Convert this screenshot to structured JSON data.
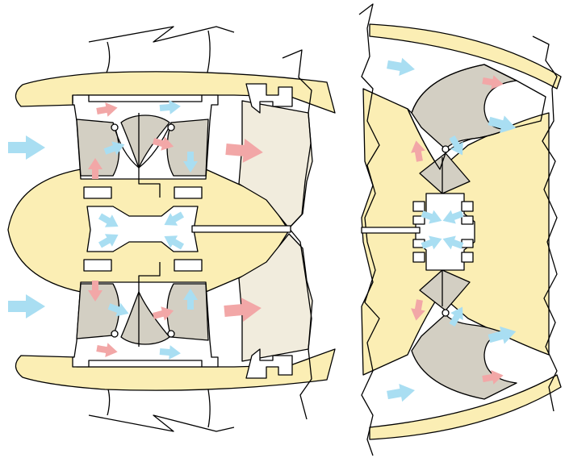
{
  "figure": {
    "panels": [
      "left-view",
      "right-view"
    ],
    "colors": {
      "wall": "#fbeeb4",
      "rotor": "#d3cfc3",
      "exhaust": "#f1ecdd",
      "intake_flow": "#a9def2",
      "exhaust_flow": "#f2a7a7",
      "outline": "#000000"
    },
    "icons": [
      "intake-arrow",
      "exhaust-arrow",
      "pivot-pin",
      "shaft"
    ]
  }
}
